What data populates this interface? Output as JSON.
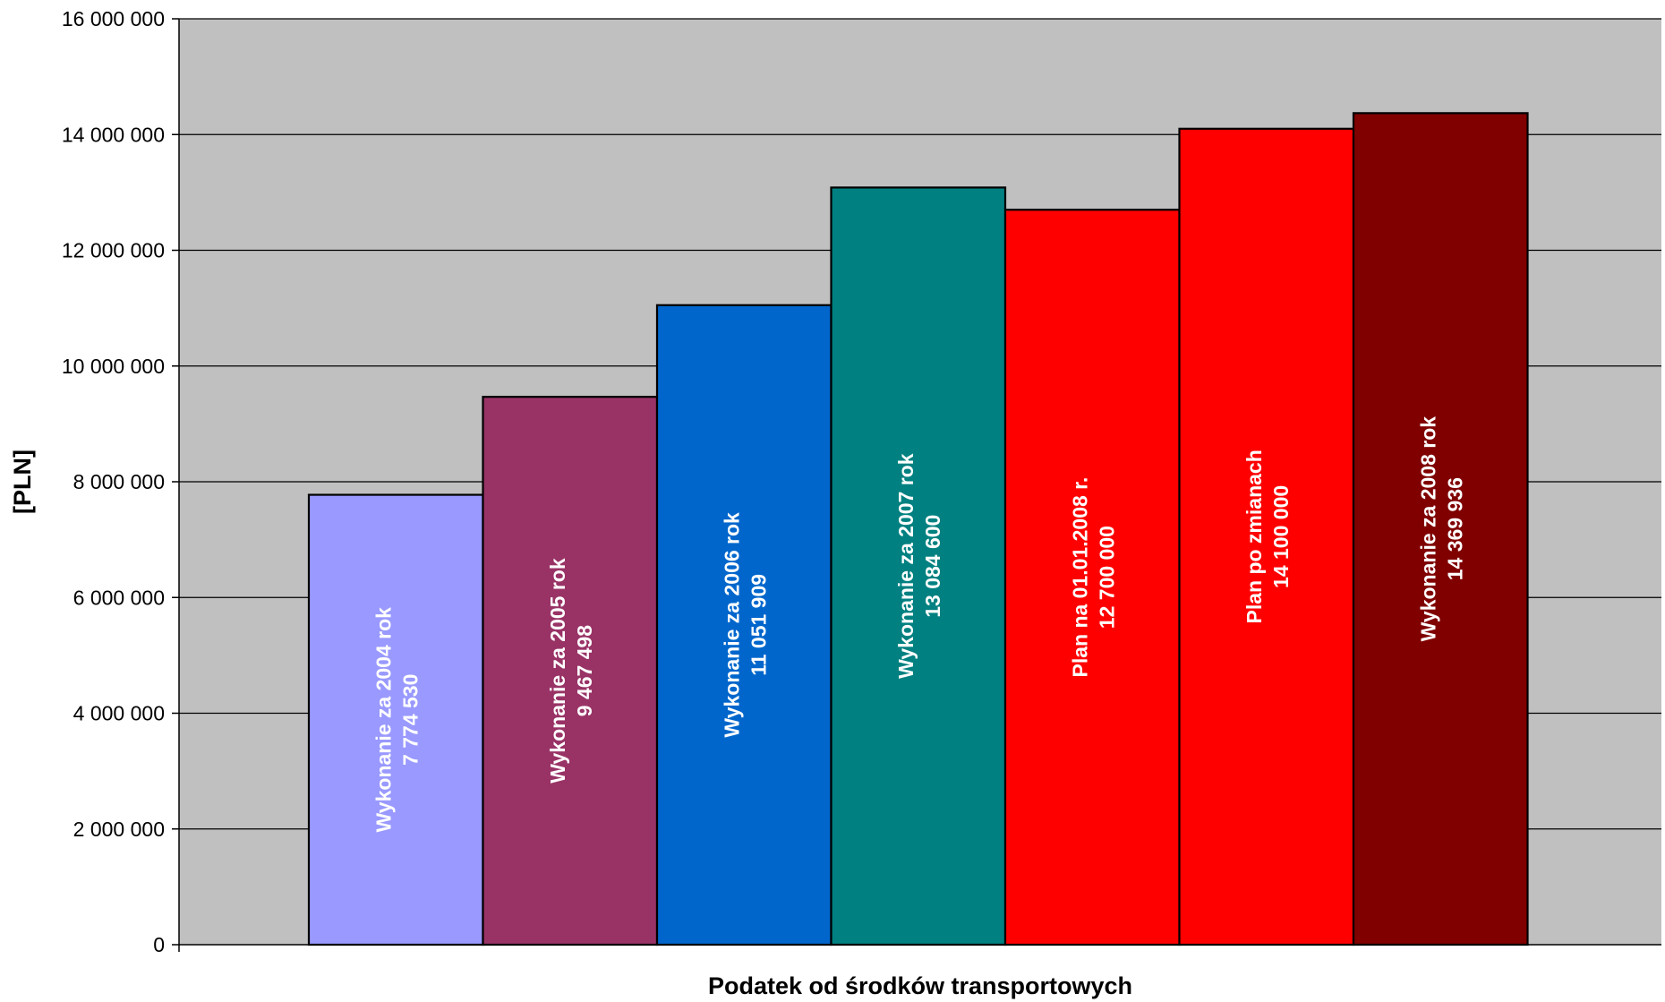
{
  "chart_data": {
    "type": "bar",
    "title": "",
    "xlabel": "Podatek od środków transportowych",
    "ylabel": "[PLN]",
    "ylim": [
      0,
      16000000
    ],
    "yticks": [
      0,
      2000000,
      4000000,
      6000000,
      8000000,
      10000000,
      12000000,
      14000000,
      16000000
    ],
    "ytick_labels": [
      "0",
      "2 000 000",
      "4 000 000",
      "6 000 000",
      "8 000 000",
      "10 000 000",
      "12 000 000",
      "14 000 000",
      "16 000 000"
    ],
    "grid": true,
    "legend": "none",
    "plot_background": "#c0c0c0",
    "categories": [
      "Wykonanie za 2004 rok",
      "Wykonanie za 2005 rok",
      "Wykonanie za 2006 rok",
      "Wykonanie za 2007 rok",
      "Plan na 01.01.2008 r.",
      "Plan po zmianach",
      "Wykonanie za 2008 rok"
    ],
    "values": [
      7774530,
      9467498,
      11051909,
      13084600,
      12700000,
      14100000,
      14369936
    ],
    "value_labels": [
      "7 774 530",
      "9 467 498",
      "11 051 909",
      "13 084 600",
      "12 700 000",
      "14 100 000",
      "14 369 936"
    ],
    "colors": [
      "#9999ff",
      "#993366",
      "#0066cc",
      "#008080",
      "#ff0000",
      "#ff0000",
      "#800000"
    ]
  }
}
